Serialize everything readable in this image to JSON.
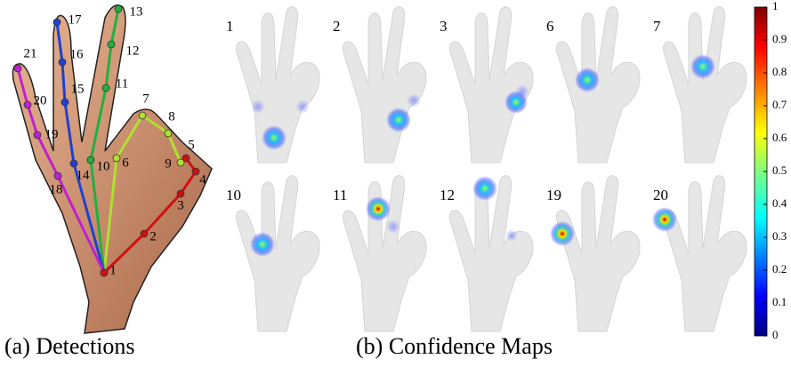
{
  "captions": [
    "(a) Detections",
    "(b) Confidence Maps"
  ],
  "keypoints": [
    "1",
    "2",
    "3",
    "4",
    "5",
    "6",
    "7",
    "8",
    "9",
    "10",
    "11",
    "12",
    "13",
    "14",
    "15",
    "16",
    "17",
    "18",
    "19",
    "20",
    "21"
  ],
  "panels": [
    "1",
    "2",
    "3",
    "6",
    "7",
    "10",
    "11",
    "12",
    "19",
    "20"
  ],
  "colorbar": {
    "ticks": [
      0,
      0.1,
      0.2,
      0.3,
      0.4,
      0.5,
      0.6,
      0.7,
      0.8,
      0.9,
      1
    ]
  }
}
